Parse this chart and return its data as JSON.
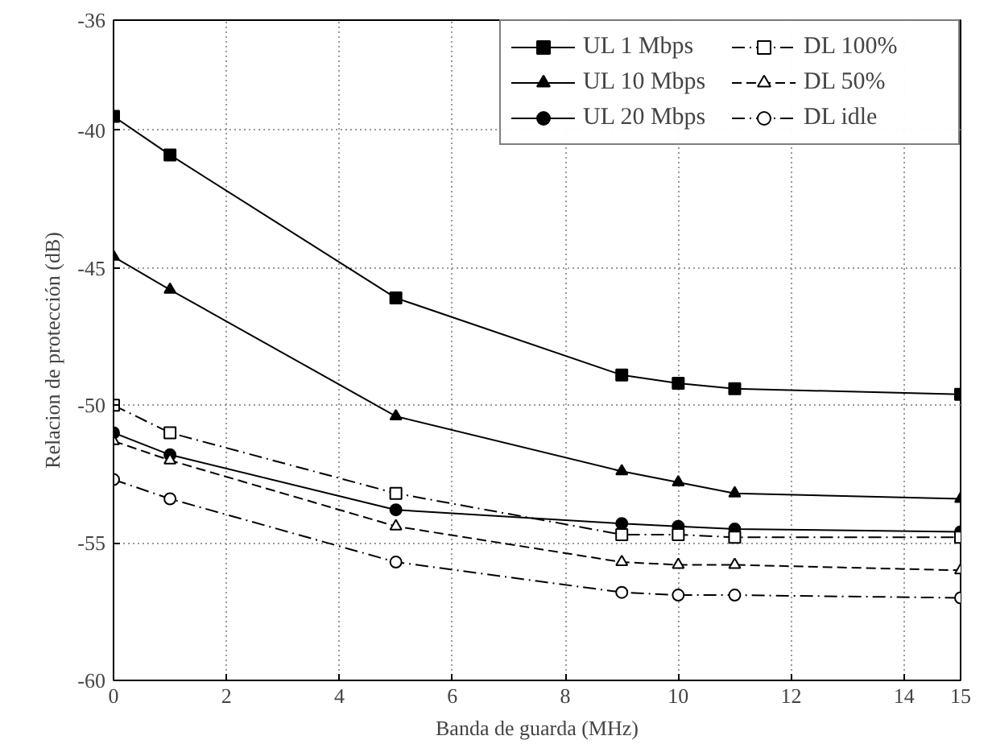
{
  "chart_data": {
    "type": "line",
    "xlabel": "Banda de guarda (MHz)",
    "ylabel": "Relacion de protección (dB)",
    "x": [
      0,
      1,
      5,
      9,
      10,
      11,
      15
    ],
    "xlim": [
      0,
      15
    ],
    "xticks": [
      0,
      2,
      4,
      6,
      8,
      10,
      12,
      14,
      15
    ],
    "ylim": [
      -60,
      -36
    ],
    "yticks": [
      -60,
      -55,
      -50,
      -45,
      -40,
      -36
    ],
    "grid": true,
    "legend": "top right",
    "series": [
      {
        "name": "UL 1 Mbps",
        "color": "#000000",
        "marker": "square",
        "line_style": "solid",
        "values": [
          -39.5,
          -40.9,
          -46.1,
          -48.9,
          -49.2,
          -49.4,
          -49.6
        ]
      },
      {
        "name": "UL 10 Mbps",
        "color": "#000000",
        "marker": "triangle",
        "line_style": "solid",
        "values": [
          -44.6,
          -45.8,
          -50.4,
          -52.4,
          -52.8,
          -53.2,
          -53.4
        ]
      },
      {
        "name": "UL 20 Mbps",
        "color": "#000000",
        "marker": "circle",
        "line_style": "solid",
        "values": [
          -51.0,
          -51.8,
          -53.8,
          -54.3,
          -54.4,
          -54.5,
          -54.6
        ]
      },
      {
        "name": "DL 100%",
        "color": "#000000",
        "marker": "square",
        "line_style": "dashdot",
        "values": [
          -50.0,
          -51.0,
          -53.2,
          -54.7,
          -54.7,
          -54.8,
          -54.8
        ]
      },
      {
        "name": "DL 50%",
        "color": "#000000",
        "marker": "triangle",
        "line_style": "dashed",
        "values": [
          -51.3,
          -52.0,
          -54.4,
          -55.7,
          -55.8,
          -55.8,
          -56.0
        ]
      },
      {
        "name": "DL idle",
        "color": "#000000",
        "marker": "circle",
        "line_style": "dashdot",
        "values": [
          -52.7,
          -53.4,
          -55.7,
          -56.8,
          -56.9,
          -56.9,
          -57.0
        ]
      }
    ]
  }
}
